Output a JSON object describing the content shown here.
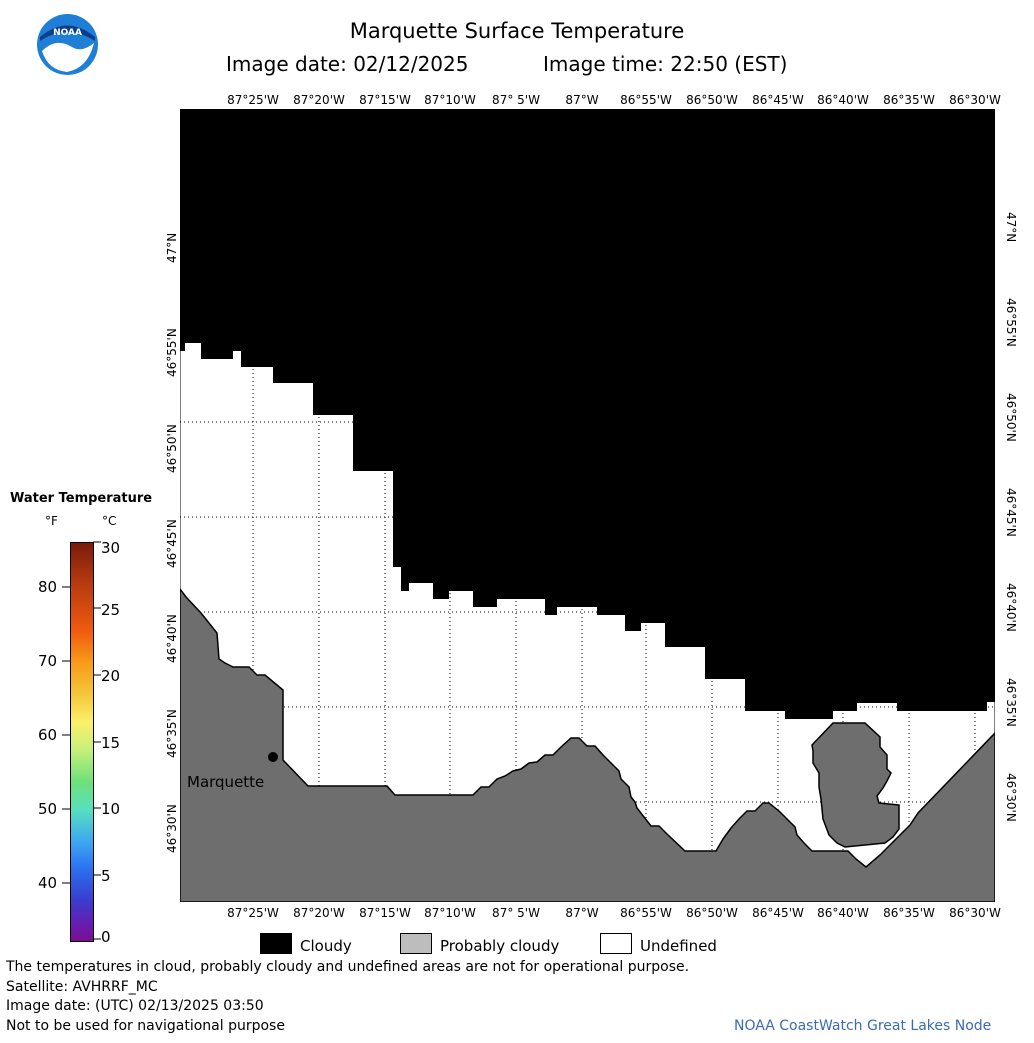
{
  "title": "Marquette Surface Temperature",
  "subtitle": {
    "image_date": "Image date: 02/12/2025",
    "image_time": "Image time: 22:50 (EST)"
  },
  "logo_text": "NOAA",
  "lon_labels": [
    "87°25'W",
    "87°20'W",
    "87°15'W",
    "87°10'W",
    "87° 5'W",
    "87°W",
    "86°55'W",
    "86°50'W",
    "86°45'W",
    "86°40'W",
    "86°35'W",
    "86°30'W"
  ],
  "lat_labels": [
    "47°N",
    "46°55'N",
    "46°50'N",
    "46°45'N",
    "46°40'N",
    "46°35'N",
    "46°30'N"
  ],
  "place_label": "Marquette",
  "legend": {
    "title": "Water Temperature",
    "unit_f": "°F",
    "unit_c": "°C",
    "f_ticks": [
      "80",
      "70",
      "60",
      "50",
      "40"
    ],
    "c_ticks": [
      "30",
      "25",
      "20",
      "15",
      "10",
      "5",
      "0"
    ]
  },
  "key": {
    "cloudy": "Cloudy",
    "probably_cloudy": "Probably cloudy",
    "undefined": "Undefined"
  },
  "colors": {
    "cloudy": "#000000",
    "land": "#6e6e6e",
    "probably_cloudy": "#bdbdbd",
    "undefined": "#ffffff",
    "credit": "#3a6bb5",
    "logo_blue": "#1f7fd6"
  },
  "footer": {
    "line1": "The temperatures in cloud, probably cloudy and undefined areas are not for operational purpose.",
    "line2": "Satellite: AVHRRF_MC",
    "line3": "Image date: (UTC) 02/13/2025  03:50",
    "line4": "Not to be used for navigational purpose",
    "credit": "NOAA CoastWatch Great Lakes Node"
  }
}
